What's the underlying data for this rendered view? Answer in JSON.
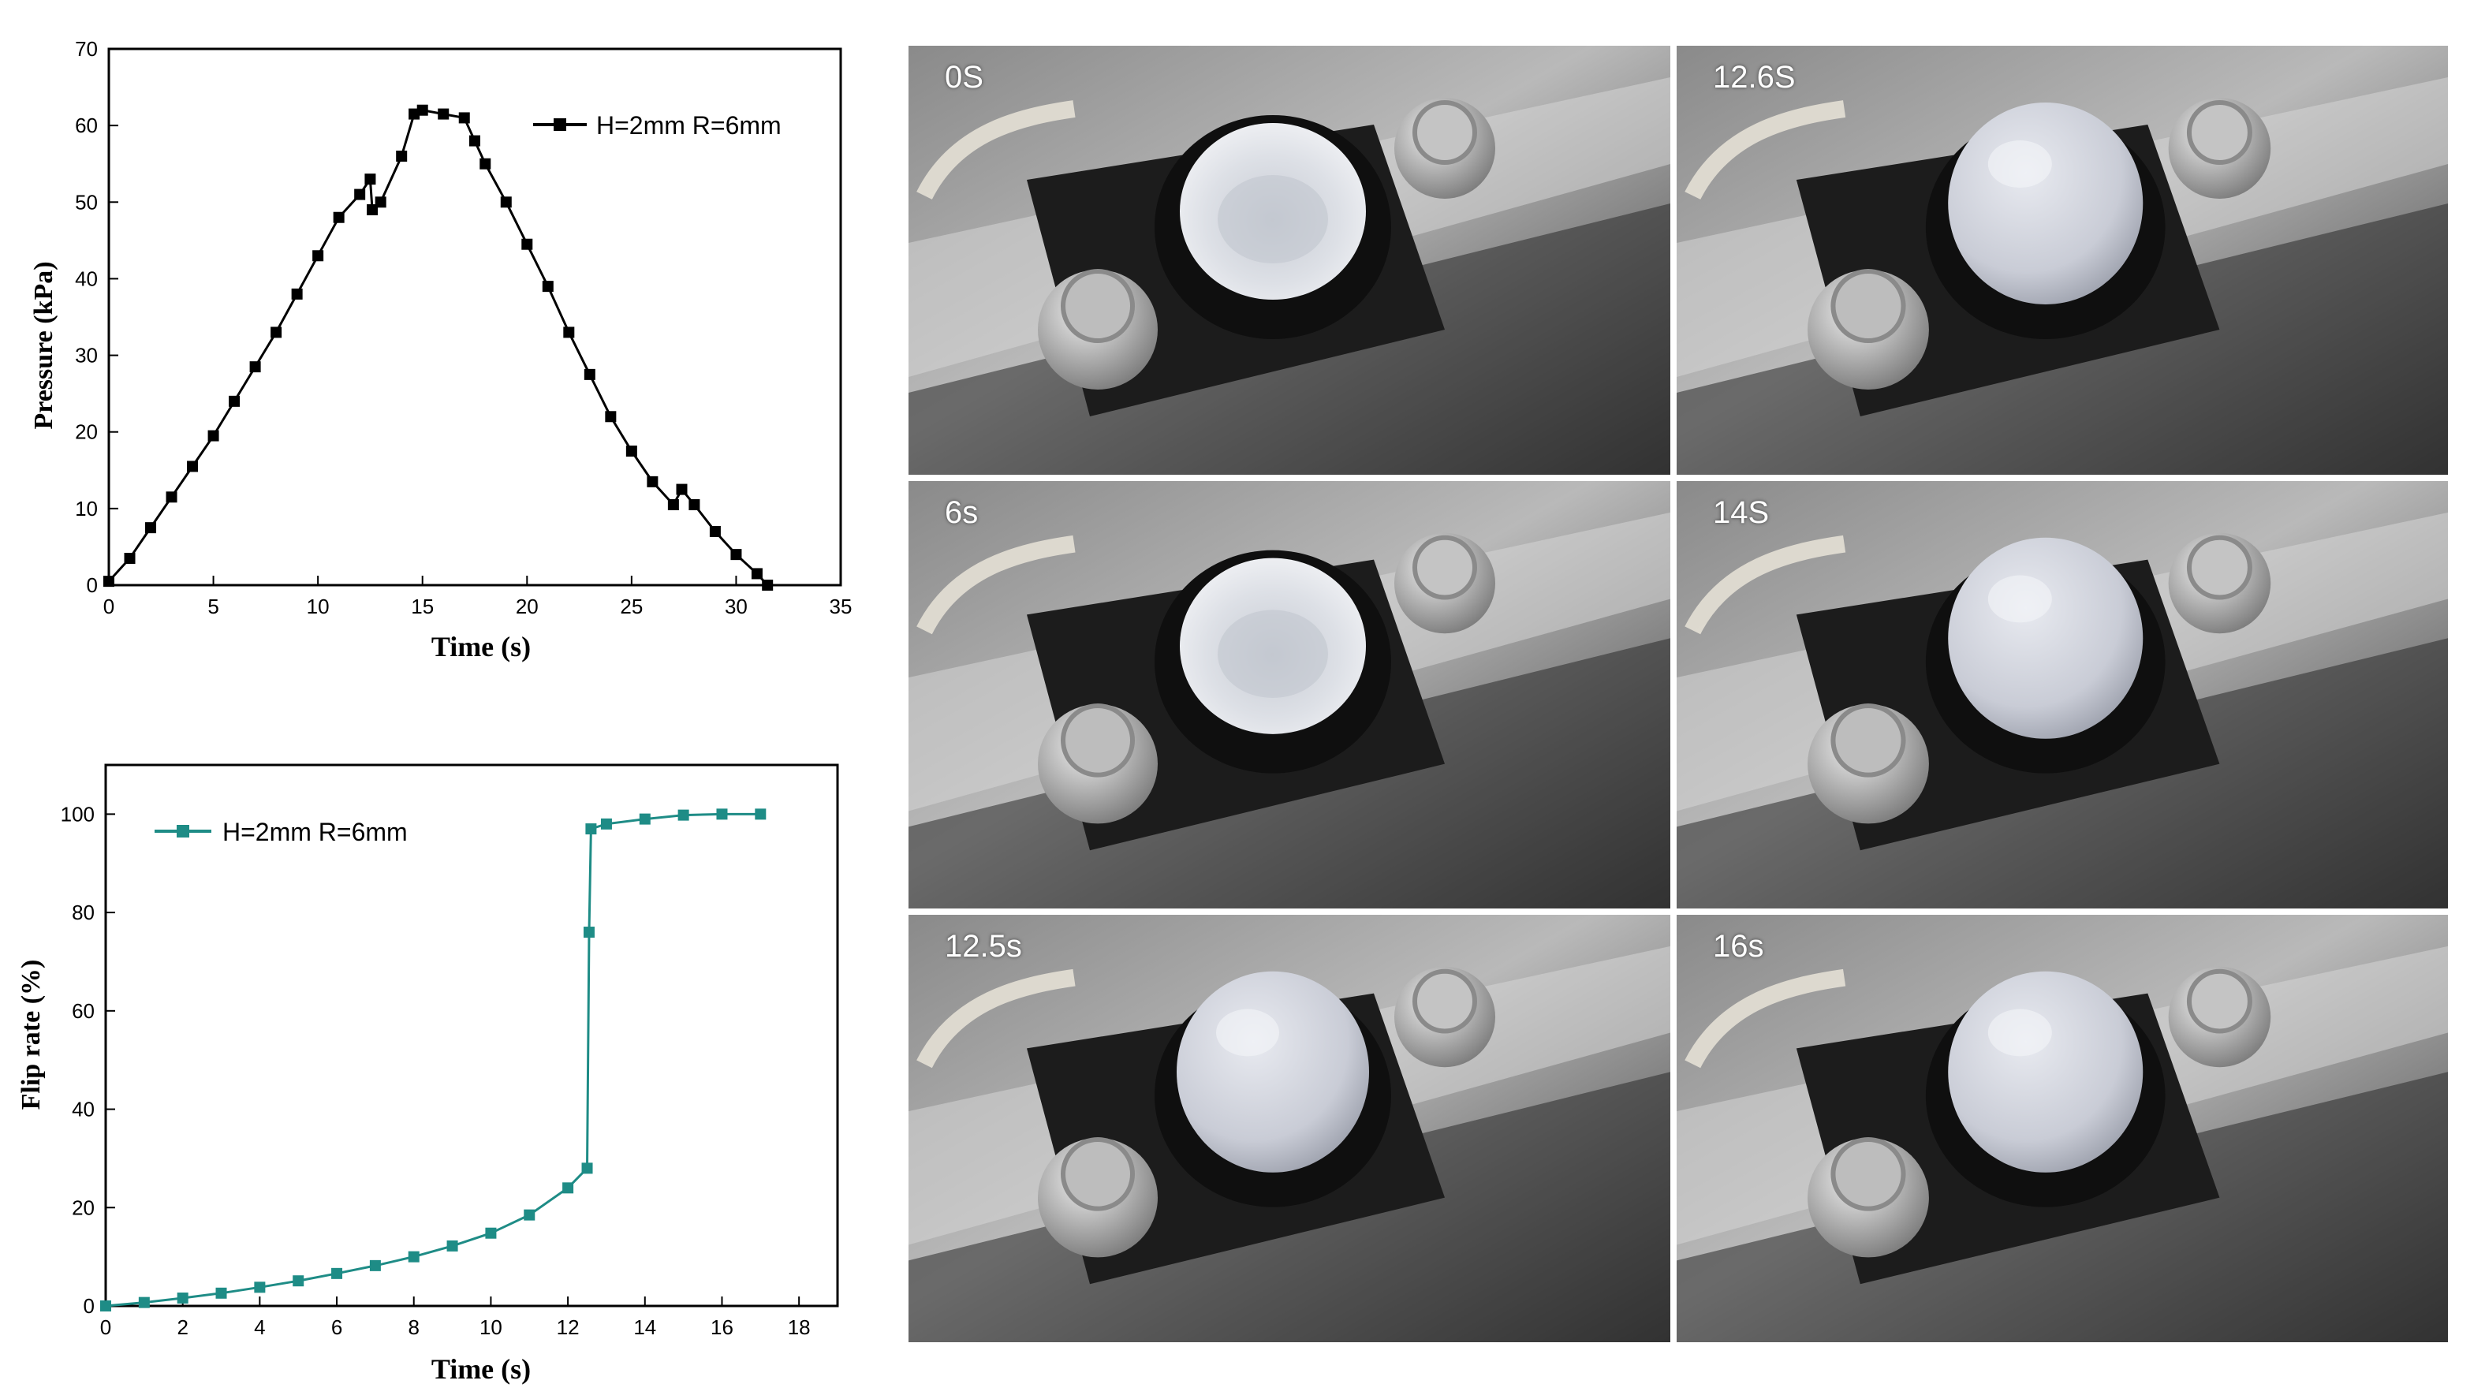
{
  "chart_data": [
    {
      "type": "scatter",
      "title": "",
      "xlabel": "Time (s)",
      "ylabel": "Pressure (kPa)",
      "xlim": [
        0,
        35
      ],
      "ylim": [
        0,
        70
      ],
      "xticks": [
        "0",
        "5",
        "10",
        "15",
        "20",
        "25",
        "30",
        "35"
      ],
      "yticks": [
        "0",
        "10",
        "20",
        "30",
        "40",
        "50",
        "60",
        "70"
      ],
      "legend_position": "top-right",
      "color": "#000000",
      "marker": "square",
      "series": [
        {
          "name": "H=2mm R=6mm",
          "points": [
            [
              0,
              0.5
            ],
            [
              1,
              3.5
            ],
            [
              2,
              7.5
            ],
            [
              3,
              11.5
            ],
            [
              4,
              15.5
            ],
            [
              5,
              19.5
            ],
            [
              6,
              24
            ],
            [
              7,
              28.5
            ],
            [
              8,
              33
            ],
            [
              9,
              38
            ],
            [
              10,
              43
            ],
            [
              11,
              48
            ],
            [
              12,
              51
            ],
            [
              12.5,
              53
            ],
            [
              12.6,
              49
            ],
            [
              13,
              50
            ],
            [
              14,
              56
            ],
            [
              14.6,
              61.5
            ],
            [
              15,
              62
            ],
            [
              16,
              61.5
            ],
            [
              17,
              61
            ],
            [
              17.5,
              58
            ],
            [
              18,
              55
            ],
            [
              19,
              50
            ],
            [
              20,
              44.5
            ],
            [
              21,
              39
            ],
            [
              22,
              33
            ],
            [
              23,
              27.5
            ],
            [
              24,
              22
            ],
            [
              25,
              17.5
            ],
            [
              26,
              13.5
            ],
            [
              27,
              10.5
            ],
            [
              27.4,
              12.5
            ],
            [
              28,
              10.5
            ],
            [
              29,
              7
            ],
            [
              30,
              4
            ],
            [
              31,
              1.5
            ],
            [
              31.5,
              0
            ]
          ]
        }
      ]
    },
    {
      "type": "line",
      "title": "",
      "xlabel": "Time (s)",
      "ylabel": "Flip rate (%)",
      "xlim": [
        0,
        19
      ],
      "ylim": [
        0,
        110
      ],
      "xticks": [
        "0",
        "2",
        "4",
        "6",
        "8",
        "10",
        "12",
        "14",
        "16",
        "18"
      ],
      "yticks": [
        "0",
        "20",
        "40",
        "60",
        "80",
        "100"
      ],
      "legend_position": "top-left",
      "color": "#1e8c86",
      "marker": "square",
      "series": [
        {
          "name": "H=2mm R=6mm",
          "points": [
            [
              0,
              0
            ],
            [
              1,
              0.7
            ],
            [
              2,
              1.6
            ],
            [
              3,
              2.6
            ],
            [
              4,
              3.8
            ],
            [
              5,
              5.1
            ],
            [
              6,
              6.6
            ],
            [
              7,
              8.2
            ],
            [
              8,
              10
            ],
            [
              9,
              12.2
            ],
            [
              10,
              14.8
            ],
            [
              11,
              18.5
            ],
            [
              12,
              24
            ],
            [
              12.5,
              28
            ],
            [
              12.55,
              76
            ],
            [
              12.6,
              97
            ],
            [
              13,
              98
            ],
            [
              14,
              99
            ],
            [
              15,
              99.8
            ],
            [
              16,
              100
            ],
            [
              17,
              100
            ]
          ]
        }
      ]
    }
  ],
  "photos": [
    {
      "label": "0S",
      "state": "concave"
    },
    {
      "label": "12.6S",
      "state": "dome"
    },
    {
      "label": "6s",
      "state": "concave"
    },
    {
      "label": "14S",
      "state": "dome"
    },
    {
      "label": "12.5s",
      "state": "dome"
    },
    {
      "label": "16s",
      "state": "dome"
    }
  ]
}
